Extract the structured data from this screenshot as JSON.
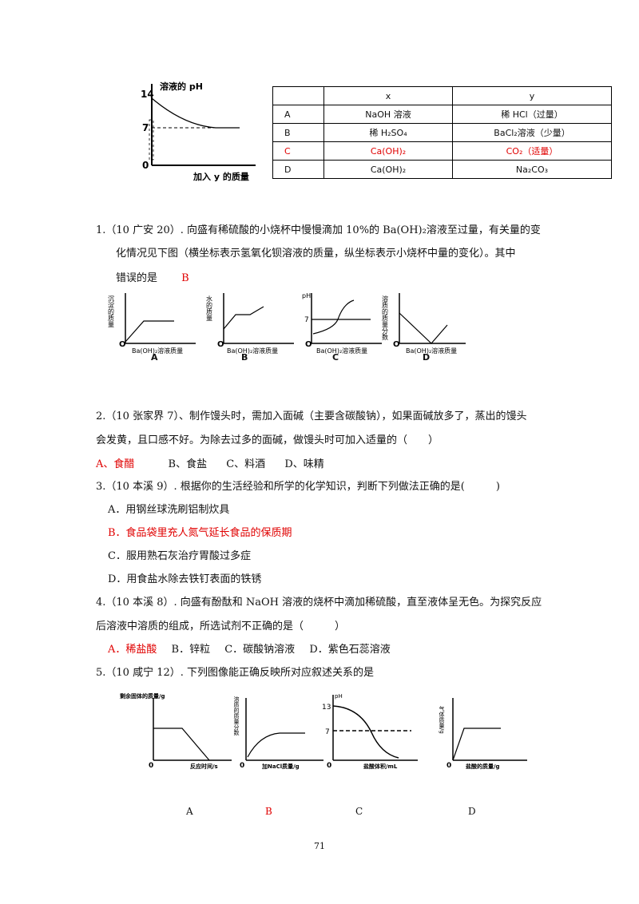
{
  "top_graph": {
    "ylabel": "溶液的 pH",
    "xlabel": "加入 y 的质量",
    "ticks": [
      "14",
      "7",
      "0"
    ]
  },
  "table": {
    "header": [
      "",
      "x",
      "y"
    ],
    "rows": [
      {
        "label": "A",
        "x": "NaOH 溶液",
        "y": "稀 HCl（过量）",
        "highlight": false
      },
      {
        "label": "B",
        "x": "稀 H₂SO₄",
        "y": "BaCl₂溶液（少量）",
        "highlight": false
      },
      {
        "label": "C",
        "x": "Ca(OH)₂",
        "y": "CO₂（适量）",
        "highlight": true
      },
      {
        "label": "D",
        "x": "Ca(OH)₂",
        "y": "Na₂CO₃",
        "highlight": false
      }
    ]
  },
  "q1": {
    "line1": "1.（10 广安 20）. 向盛有稀硫酸的小烧杯中慢慢滴加 10%的 Ba(OH)₂溶液至过量，有关量的变",
    "line2": "化情况见下图（横坐标表示氢氧化钡溶液的质量，纵坐标表示小烧杯中量的变化）。其中",
    "line3": "错误的是",
    "answer": "B",
    "graphs": [
      {
        "label": "A",
        "ylabel": "沉淀的质量",
        "xlabel": "Ba(OH)₂溶液质量",
        "origin": "O"
      },
      {
        "label": "B",
        "ylabel": "水的质量",
        "xlabel": "Ba(OH)₂溶液质量",
        "origin": "O"
      },
      {
        "label": "C",
        "ylabel": "pH",
        "xlabel": "Ba(OH)₂溶液质量",
        "origin": "O",
        "tick": "7"
      },
      {
        "label": "D",
        "ylabel": "溶质的质量分数",
        "xlabel": "Ba(OH)₂溶液质量",
        "origin": "O"
      }
    ]
  },
  "q2": {
    "line1": "2.（10 张家界 7）、制作馒头时，需加入面碱（主要含碳酸钠），如果面碱放多了，蒸出的馒头",
    "line2": "会发黄，且口感不好。为除去过多的面碱，做馒头时可加入适量的（　　）",
    "options": [
      "A、食醋",
      "B、食盐",
      "C、料酒",
      "D、味精"
    ]
  },
  "q3": {
    "line1": "3.（10 本溪 9）. 根据你的生活经验和所学的化学知识，判断下列做法正确的是(　　　)",
    "options": [
      "A．用钢丝球洗刷铝制炊具",
      "B．食品袋里充人氮气延长食品的保质期",
      "C．服用熟石灰治疗胃酸过多症",
      "D．用食盐水除去铁钉表面的铁锈"
    ]
  },
  "q4": {
    "line1": "4.（10 本溪 8）. 向盛有酚酞和 NaOH 溶液的烧杯中滴加稀硫酸，直至液体呈无色。为探究反应",
    "line2": "后溶液中溶质的组成，所选试剂不正确的是（　　　）",
    "options": [
      "A．稀盐酸",
      "B．锌粒",
      "C．碳酸钠溶液",
      "D．紫色石蕊溶液"
    ]
  },
  "q5": {
    "line1": "5.（10 咸宁 12）. 下列图像能正确反映所对应叙述关系的是",
    "graphs": [
      {
        "label": "A",
        "ylabel": "剩余固体的质量/g",
        "xlabel": "反应时间/s",
        "origin": "0"
      },
      {
        "label": "B",
        "ylabel": "溶质的质量分数",
        "xlabel": "加NaCl质量/g",
        "origin": "0"
      },
      {
        "label": "C",
        "ylabel": "pH",
        "xlabel": "盐酸体积/mL",
        "origin": "0",
        "ticks": [
          "13",
          "7"
        ]
      },
      {
        "label": "D",
        "ylabel": "气体质量/g",
        "xlabel": "盐酸的质量/g",
        "origin": "0"
      }
    ]
  },
  "page_number": "71"
}
